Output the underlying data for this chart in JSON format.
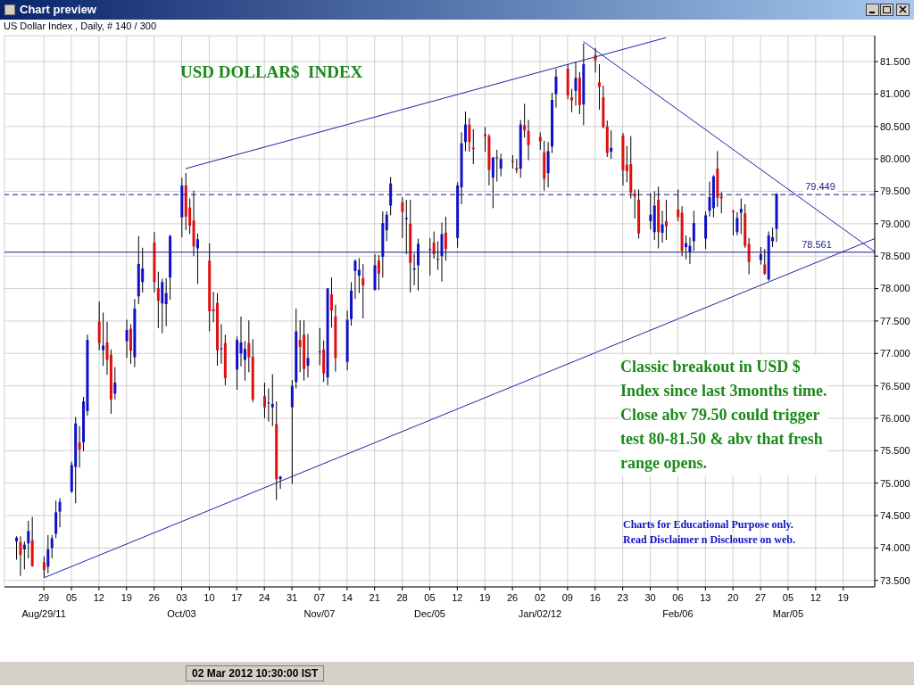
{
  "chart_data": {
    "type": "candlestick",
    "title": "USD DOLLAR$  INDEX",
    "subtitle": "US Dollar Index , Daily, # 140 / 300",
    "annotations": [
      "Chart preview",
      "Classic breakout in USD $\nIndex since last 3months time.\nClose abv 79.50 could trigger\ntest 80-81.50 & abv that fresh\nrange opens.",
      "Charts for Educational Purpose only.\nRead Disclaimer n Disclousre on web.",
      "02 Mar 2012 10:30:00 IST"
    ],
    "colors": [
      "#1010c8",
      "#e01010",
      "#1010c8",
      "#1010c8",
      "#e01010",
      "#e01010",
      "#1010c8",
      "#1010c8",
      "#1010c8",
      "#1010c8",
      "#1010c8",
      "#1010c8",
      "#e01010",
      "#1010c8",
      "#1010c8",
      "#e01010",
      "#1010c8",
      "#e01010",
      "#e01010",
      "#1010c8",
      "#1010c8",
      "#e01010",
      "#1010c8",
      "#1010c8",
      "#1010c8",
      "#e01010",
      "#e01010",
      "#1010c8",
      "#1010c8",
      "#1010c8",
      "#1010c8",
      "#e01010",
      "#e01010",
      "#e01010",
      "#1010c8",
      "#e01010",
      "#e01010",
      "#e01010",
      "#1010c8",
      "#e01010",
      "#1010c8",
      "#1010c8",
      "#1010c8",
      "#e01010",
      "#e01010",
      "#e01010",
      "#1010c8",
      "#1010c8",
      "#e01010",
      "#1010c8",
      "#1010c8",
      "#1010c8",
      "#e01010",
      "#e01010",
      "#1010c8",
      "#1010c8",
      "#e01010",
      "#1010c8",
      "#e01010",
      "#e01010",
      "#1010c8",
      "#1010c8",
      "#1010c8",
      "#1010c8",
      "#e01010",
      "#1010c8",
      "#e01010",
      "#1010c8",
      "#1010c8",
      "#1010c8",
      "#e01010",
      "#1010c8",
      "#e01010",
      "#1010c8",
      "#1010c8",
      "#1010c8",
      "#e01010",
      "#e01010",
      "#1010c8",
      "#e01010",
      "#1010c8",
      "#1010c8",
      "#1010c8",
      "#e01010",
      "#e01010",
      "#e01010",
      "#e01010",
      "#1010c8",
      "#e01010",
      "#1010c8",
      "#e01010",
      "#e01010",
      "#1010c8",
      "#e01010",
      "#e01010",
      "#e01010",
      "#e01010",
      "#1010c8",
      "#1010c8",
      "#1010c8",
      "#e01010",
      "#e01010",
      "#1010c8",
      "#e01010",
      "#1010c8",
      "#e01010",
      "#e01010",
      "#e01010",
      "#e01010",
      "#1010c8",
      "#e01010",
      "#e01010",
      "#e01010",
      "#e01010",
      "#e01010",
      "#1010c8",
      "#1010c8",
      "#e01010",
      "#1010c8",
      "#e01010",
      "#e01010",
      "#e01010",
      "#1010c8",
      "#1010c8",
      "#1010c8",
      "#1010c8",
      "#1010c8",
      "#1010c8",
      "#e01010",
      "#e01010",
      "#e01010",
      "#1010c8",
      "#1010c8",
      "#e01010",
      "#e01010",
      "#1010c8",
      "#e01010",
      "#1010c8",
      "#1010c8",
      "#1010c8"
    ],
    "x": [
      "2011-08-22",
      "2011-08-23",
      "2011-08-24",
      "2011-08-25",
      "2011-08-26",
      "2011-08-29",
      "2011-08-30",
      "2011-08-31",
      "2011-09-01",
      "2011-09-02",
      "2011-09-05",
      "2011-09-06",
      "2011-09-07",
      "2011-09-08",
      "2011-09-09",
      "2011-09-12",
      "2011-09-13",
      "2011-09-14",
      "2011-09-15",
      "2011-09-16",
      "2011-09-19",
      "2011-09-20",
      "2011-09-21",
      "2011-09-22",
      "2011-09-23",
      "2011-09-26",
      "2011-09-27",
      "2011-09-28",
      "2011-09-29",
      "2011-09-30",
      "2011-10-03",
      "2011-10-04",
      "2011-10-05",
      "2011-10-06",
      "2011-10-07",
      "2011-10-10",
      "2011-10-11",
      "2011-10-12",
      "2011-10-13",
      "2011-10-14",
      "2011-10-17",
      "2011-10-18",
      "2011-10-19",
      "2011-10-20",
      "2011-10-21",
      "2011-10-24",
      "2011-10-25",
      "2011-10-26",
      "2011-10-27",
      "2011-10-28",
      "2011-10-31",
      "2011-11-01",
      "2011-11-02",
      "2011-11-03",
      "2011-11-04",
      "2011-11-07",
      "2011-11-08",
      "2011-11-09",
      "2011-11-10",
      "2011-11-11",
      "2011-11-14",
      "2011-11-15",
      "2011-11-16",
      "2011-11-17",
      "2011-11-18",
      "2011-11-21",
      "2011-11-22",
      "2011-11-23",
      "2011-11-24",
      "2011-11-25",
      "2011-11-28",
      "2011-11-29",
      "2011-11-30",
      "2011-12-01",
      "2011-12-02",
      "2011-12-05",
      "2011-12-06",
      "2011-12-07",
      "2011-12-08",
      "2011-12-09",
      "2011-12-12",
      "2011-12-13",
      "2011-12-14",
      "2011-12-15",
      "2011-12-16",
      "2011-12-19",
      "2011-12-20",
      "2011-12-21",
      "2011-12-22",
      "2011-12-23",
      "2011-12-26",
      "2011-12-27",
      "2011-12-28",
      "2011-12-29",
      "2011-12-30",
      "2012-01-02",
      "2012-01-03",
      "2012-01-04",
      "2012-01-05",
      "2012-01-06",
      "2012-01-09",
      "2012-01-10",
      "2012-01-11",
      "2012-01-12",
      "2012-01-13",
      "2012-01-16",
      "2012-01-17",
      "2012-01-18",
      "2012-01-19",
      "2012-01-20",
      "2012-01-23",
      "2012-01-24",
      "2012-01-25",
      "2012-01-26",
      "2012-01-27",
      "2012-01-30",
      "2012-01-31",
      "2012-02-01",
      "2012-02-02",
      "2012-02-03",
      "2012-02-06",
      "2012-02-07",
      "2012-02-08",
      "2012-02-09",
      "2012-02-10",
      "2012-02-13",
      "2012-02-14",
      "2012-02-15",
      "2012-02-16",
      "2012-02-17",
      "2012-02-20",
      "2012-02-21",
      "2012-02-22",
      "2012-02-23",
      "2012-02-24",
      "2012-02-27",
      "2012-02-28",
      "2012-02-29",
      "2012-03-01",
      "2012-03-02"
    ],
    "ohlc": [
      [
        74.1,
        74.18,
        73.82,
        74.16
      ],
      [
        74.09,
        74.18,
        73.57,
        73.89
      ],
      [
        73.98,
        74.1,
        73.67,
        74.05
      ],
      [
        74.07,
        74.42,
        73.84,
        74.26
      ],
      [
        74.12,
        74.48,
        73.71,
        73.72
      ],
      [
        73.78,
        73.87,
        73.55,
        73.66
      ],
      [
        73.71,
        74.2,
        73.61,
        73.98
      ],
      [
        74.0,
        74.2,
        73.84,
        74.15
      ],
      [
        74.22,
        74.73,
        74.15,
        74.55
      ],
      [
        74.56,
        74.77,
        74.32,
        74.71
      ],
      [
        74.87,
        75.33,
        74.85,
        75.28
      ],
      [
        75.25,
        76.02,
        74.69,
        75.92
      ],
      [
        75.63,
        75.88,
        75.24,
        75.52
      ],
      [
        75.63,
        76.33,
        75.49,
        76.26
      ],
      [
        76.11,
        77.29,
        76.04,
        77.21
      ],
      [
        77.49,
        77.8,
        77.05,
        77.16
      ],
      [
        77.05,
        77.63,
        76.81,
        77.12
      ],
      [
        77.17,
        77.49,
        76.67,
        76.9
      ],
      [
        76.98,
        77.06,
        76.07,
        76.29
      ],
      [
        76.38,
        76.79,
        76.29,
        76.55
      ],
      [
        77.19,
        77.52,
        76.93,
        77.36
      ],
      [
        77.38,
        77.45,
        76.84,
        77.04
      ],
      [
        76.94,
        77.84,
        76.79,
        77.69
      ],
      [
        77.88,
        78.81,
        77.76,
        78.38
      ],
      [
        78.1,
        78.63,
        77.94,
        78.31
      ],
      [
        78.71,
        78.87,
        77.94,
        78.1
      ],
      [
        78.01,
        78.26,
        77.39,
        77.81
      ],
      [
        77.77,
        78.15,
        77.31,
        78.1
      ],
      [
        77.76,
        78.16,
        77.42,
        77.93
      ],
      [
        78.17,
        78.83,
        77.83,
        78.81
      ],
      [
        79.1,
        79.71,
        78.79,
        79.59
      ],
      [
        79.59,
        79.78,
        78.9,
        79.11
      ],
      [
        79.25,
        79.39,
        78.84,
        78.97
      ],
      [
        79.05,
        79.51,
        78.5,
        78.65
      ],
      [
        78.62,
        78.85,
        78.07,
        78.76
      ],
      [
        78.43,
        78.7,
        77.34,
        77.65
      ],
      [
        77.68,
        77.95,
        77.48,
        77.65
      ],
      [
        77.78,
        77.93,
        76.81,
        77.05
      ],
      [
        77.08,
        77.45,
        76.84,
        77.08
      ],
      [
        77.16,
        77.29,
        76.51,
        76.62
      ],
      [
        76.75,
        77.26,
        76.44,
        77.21
      ],
      [
        77.0,
        77.57,
        76.8,
        77.17
      ],
      [
        76.9,
        77.19,
        76.58,
        77.07
      ],
      [
        77.16,
        77.51,
        76.71,
        76.94
      ],
      [
        76.95,
        77.22,
        76.25,
        76.29
      ],
      [
        76.34,
        76.55,
        76.0,
        76.17
      ],
      [
        76.24,
        76.46,
        75.95,
        76.24
      ],
      [
        76.17,
        76.68,
        75.88,
        76.22
      ],
      [
        75.91,
        76.26,
        74.74,
        75.06
      ],
      [
        75.06,
        75.11,
        74.91,
        75.1
      ],
      [
        76.17,
        76.59,
        74.99,
        76.5
      ],
      [
        76.56,
        77.69,
        76.46,
        77.34
      ],
      [
        77.21,
        77.51,
        76.71,
        77.1
      ],
      [
        77.29,
        77.51,
        76.58,
        76.76
      ],
      [
        76.81,
        77.3,
        76.63,
        76.93
      ],
      [
        77.03,
        77.39,
        76.82,
        77.03
      ],
      [
        77.06,
        77.2,
        76.56,
        76.69
      ],
      [
        76.63,
        78.01,
        76.51,
        78.0
      ],
      [
        77.91,
        78.17,
        77.4,
        77.66
      ],
      [
        77.57,
        77.75,
        76.72,
        76.93
      ],
      [
        76.87,
        77.66,
        76.74,
        77.52
      ],
      [
        77.53,
        78.1,
        77.43,
        77.97
      ],
      [
        78.27,
        78.45,
        77.84,
        78.43
      ],
      [
        78.2,
        78.47,
        77.93,
        78.29
      ],
      [
        78.16,
        78.38,
        77.54,
        78.05
      ],
      [
        77.98,
        78.53,
        77.97,
        78.36
      ],
      [
        78.43,
        78.52,
        77.98,
        78.23
      ],
      [
        78.49,
        79.19,
        78.17,
        79.01
      ],
      [
        78.9,
        79.19,
        78.73,
        79.14
      ],
      [
        79.28,
        79.72,
        79.13,
        79.62
      ],
      [
        79.33,
        79.41,
        78.78,
        79.18
      ],
      [
        79.07,
        79.37,
        78.53,
        79.09
      ],
      [
        79.0,
        79.37,
        77.94,
        78.4
      ],
      [
        78.29,
        78.54,
        78.05,
        78.31
      ],
      [
        78.36,
        78.77,
        77.97,
        78.69
      ],
      [
        78.61,
        78.78,
        78.2,
        78.61
      ],
      [
        78.71,
        78.88,
        78.46,
        78.53
      ],
      [
        78.46,
        78.73,
        78.29,
        78.44
      ],
      [
        78.5,
        79.02,
        78.11,
        78.84
      ],
      [
        78.86,
        79.11,
        78.43,
        78.61
      ],
      [
        78.78,
        79.64,
        78.63,
        79.59
      ],
      [
        79.56,
        80.41,
        79.3,
        80.24
      ],
      [
        80.26,
        80.73,
        80.12,
        80.53
      ],
      [
        80.53,
        80.63,
        80.11,
        80.26
      ],
      [
        80.17,
        80.46,
        79.92,
        80.15
      ],
      [
        80.38,
        80.49,
        80.11,
        80.35
      ],
      [
        80.35,
        80.38,
        79.59,
        79.83
      ],
      [
        79.71,
        80.03,
        79.24,
        80.02
      ],
      [
        80.03,
        80.14,
        79.65,
        80.01
      ],
      [
        79.85,
        80.08,
        79.73,
        80.0
      ],
      [
        79.97,
        80.06,
        79.85,
        79.95
      ],
      [
        79.86,
        80.0,
        79.78,
        79.83
      ],
      [
        79.85,
        80.6,
        79.71,
        80.53
      ],
      [
        80.52,
        80.85,
        80.33,
        80.44
      ],
      [
        80.43,
        80.6,
        79.98,
        80.21
      ],
      [
        80.34,
        80.41,
        80.14,
        80.27
      ],
      [
        80.1,
        80.28,
        79.51,
        79.69
      ],
      [
        79.78,
        80.26,
        79.56,
        80.12
      ],
      [
        80.19,
        81.02,
        80.09,
        80.91
      ],
      [
        81.0,
        81.39,
        80.79,
        81.27
      ],
      [
        81.39,
        81.46,
        80.92,
        80.98
      ],
      [
        80.95,
        81.08,
        80.72,
        80.9
      ],
      [
        81.05,
        81.5,
        80.82,
        81.25
      ],
      [
        81.25,
        81.34,
        80.69,
        80.83
      ],
      [
        80.84,
        81.78,
        80.52,
        81.46
      ],
      [
        81.6,
        81.71,
        81.33,
        81.52
      ],
      [
        81.18,
        81.46,
        80.76,
        81.11
      ],
      [
        80.95,
        81.13,
        80.47,
        80.49
      ],
      [
        80.5,
        80.59,
        80.03,
        80.09
      ],
      [
        80.11,
        80.44,
        80.0,
        80.17
      ],
      [
        80.36,
        80.4,
        79.59,
        79.82
      ],
      [
        79.91,
        80.2,
        79.64,
        79.81
      ],
      [
        79.92,
        80.35,
        79.39,
        79.48
      ],
      [
        79.47,
        79.53,
        79.08,
        79.42
      ],
      [
        79.37,
        79.53,
        78.77,
        78.85
      ],
      [
        79.04,
        79.47,
        78.91,
        79.14
      ],
      [
        78.87,
        79.5,
        78.75,
        79.28
      ],
      [
        79.37,
        79.57,
        78.62,
        78.87
      ],
      [
        78.86,
        79.2,
        78.71,
        78.99
      ],
      [
        79.04,
        79.37,
        78.75,
        78.96
      ],
      [
        79.22,
        79.53,
        79.04,
        79.1
      ],
      [
        79.17,
        79.27,
        78.5,
        78.58
      ],
      [
        78.64,
        78.82,
        78.45,
        78.7
      ],
      [
        78.56,
        78.79,
        78.38,
        78.66
      ],
      [
        78.73,
        79.2,
        78.58,
        79.01
      ],
      [
        78.77,
        79.19,
        78.61,
        79.13
      ],
      [
        79.2,
        79.65,
        79.11,
        79.41
      ],
      [
        79.24,
        79.75,
        79.1,
        79.73
      ],
      [
        79.85,
        80.12,
        79.26,
        79.4
      ],
      [
        79.42,
        79.49,
        79.16,
        79.39
      ],
      [
        79.2,
        79.21,
        78.82,
        79.18
      ],
      [
        78.87,
        79.18,
        78.82,
        79.09
      ],
      [
        79.17,
        79.39,
        78.84,
        79.23
      ],
      [
        79.16,
        79.3,
        78.63,
        78.66
      ],
      [
        78.69,
        78.78,
        78.22,
        78.41
      ],
      [
        78.44,
        78.64,
        78.37,
        78.53
      ],
      [
        78.37,
        78.61,
        78.21,
        78.23
      ],
      [
        78.14,
        78.88,
        78.12,
        78.82
      ],
      [
        78.73,
        78.94,
        78.64,
        78.79
      ],
      [
        78.92,
        79.47,
        78.72,
        79.46
      ]
    ],
    "series": [
      {
        "type": "line",
        "color": "#2020a8",
        "x": [
          "2011-10-04",
          "2012-02-03"
        ],
        "values": [
          79.85,
          81.87
        ]
      },
      {
        "type": "line",
        "color": "#2020a8",
        "x": [
          "2011-08-29",
          "2012-03-27"
        ],
        "values": [
          73.54,
          78.77
        ]
      },
      {
        "type": "line",
        "color": "#2020a8",
        "x": [
          "2012-01-13",
          "2012-03-27"
        ],
        "values": [
          81.81,
          78.57
        ]
      }
    ],
    "ref_lines": [
      {
        "axis": "y",
        "value": 79.449,
        "label": "79.449",
        "color": "#1a1a90",
        "line_style": "dashed"
      },
      {
        "axis": "y",
        "value": 78.561,
        "label": "78.561",
        "color": "#1a1a90",
        "line_style": "solid"
      }
    ],
    "xlim": [
      "2011-08-19",
      "2012-03-27"
    ],
    "xticks": [
      {
        "value": "2011-08-29",
        "label": "29\nAug/29/11"
      },
      {
        "value": "2011-09-05",
        "label": "05"
      },
      {
        "value": "2011-09-12",
        "label": "12"
      },
      {
        "value": "2011-09-19",
        "label": "19"
      },
      {
        "value": "2011-09-26",
        "label": "26"
      },
      {
        "value": "2011-10-03",
        "label": "03\nOct/03"
      },
      {
        "value": "2011-10-10",
        "label": "10"
      },
      {
        "value": "2011-10-17",
        "label": "17"
      },
      {
        "value": "2011-10-24",
        "label": "24"
      },
      {
        "value": "2011-10-31",
        "label": "31"
      },
      {
        "value": "2011-11-07",
        "label": "07\nNov/07"
      },
      {
        "value": "2011-11-14",
        "label": "14"
      },
      {
        "value": "2011-11-21",
        "label": "21"
      },
      {
        "value": "2011-11-28",
        "label": "28"
      },
      {
        "value": "2011-12-05",
        "label": "05\nDec/05"
      },
      {
        "value": "2011-12-12",
        "label": "12"
      },
      {
        "value": "2011-12-19",
        "label": "19"
      },
      {
        "value": "2011-12-26",
        "label": "26"
      },
      {
        "value": "2012-01-02",
        "label": "02\nJan/02/12"
      },
      {
        "value": "2012-01-09",
        "label": "09"
      },
      {
        "value": "2012-01-16",
        "label": "16"
      },
      {
        "value": "2012-01-23",
        "label": "23"
      },
      {
        "value": "2012-01-30",
        "label": "30"
      },
      {
        "value": "2012-02-06",
        "label": "06\nFeb/06"
      },
      {
        "value": "2012-02-13",
        "label": "13"
      },
      {
        "value": "2012-02-20",
        "label": "20"
      },
      {
        "value": "2012-02-27",
        "label": "27"
      },
      {
        "value": "2012-03-05",
        "label": "05\nMar/05"
      },
      {
        "value": "2012-03-12",
        "label": "12"
      },
      {
        "value": "2012-03-19",
        "label": "19"
      }
    ],
    "ylim": [
      73.4,
      81.9
    ],
    "yticks": [
      {
        "value": 73.5,
        "label": "73.500"
      },
      {
        "value": 74,
        "label": "74.000"
      },
      {
        "value": 74.5,
        "label": "74.500"
      },
      {
        "value": 75,
        "label": "75.000"
      },
      {
        "value": 75.5,
        "label": "75.500"
      },
      {
        "value": 76,
        "label": "76.000"
      },
      {
        "value": 76.5,
        "label": "76.500"
      },
      {
        "value": 77,
        "label": "77.000"
      },
      {
        "value": 77.5,
        "label": "77.500"
      },
      {
        "value": 78,
        "label": "78.000"
      },
      {
        "value": 78.5,
        "label": "78.500"
      },
      {
        "value": 79,
        "label": "79.000"
      },
      {
        "value": 79.5,
        "label": "79.500"
      },
      {
        "value": 80,
        "label": "80.000"
      },
      {
        "value": 80.5,
        "label": "80.500"
      },
      {
        "value": 81,
        "label": "81.000"
      },
      {
        "value": 81.5,
        "label": "81.500"
      }
    ],
    "grid": true
  }
}
